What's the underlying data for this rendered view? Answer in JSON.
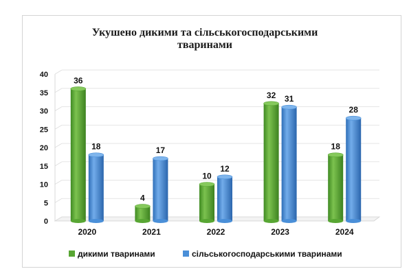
{
  "chart_data": {
    "type": "bar",
    "title_lines": [
      "Укушено дикими та сільськогосподарськими",
      "тваринами"
    ],
    "categories": [
      "2020",
      "2021",
      "2022",
      "2023",
      "2024"
    ],
    "series": [
      {
        "name": "дикими тваринами",
        "values": [
          36,
          4,
          10,
          32,
          18
        ],
        "color": "#58a633"
      },
      {
        "name": "сільськогосподарськими тваринами",
        "values": [
          18,
          17,
          12,
          31,
          28
        ],
        "color": "#4a8fd8"
      }
    ],
    "ylim": [
      0,
      40
    ],
    "yticks": [
      "0",
      "5",
      "10",
      "15",
      "20",
      "25",
      "30",
      "35",
      "40"
    ],
    "grid": true,
    "data_labels": true,
    "legend_position": "bottom"
  }
}
